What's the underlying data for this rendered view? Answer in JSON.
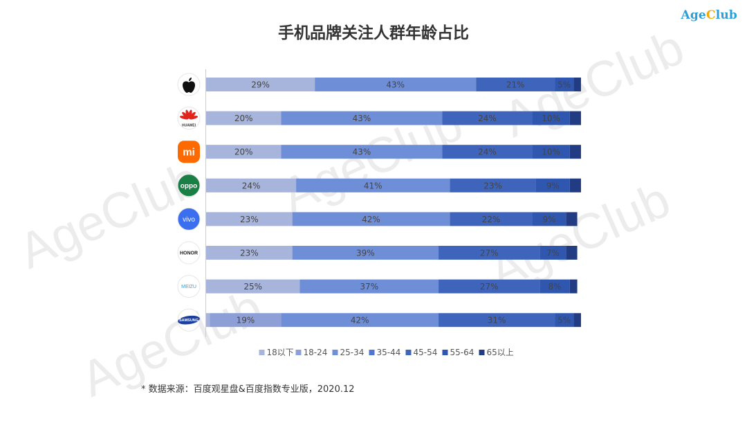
{
  "brand": {
    "name_prefix": "Age",
    "name_highlight": "C",
    "name_suffix": "lub"
  },
  "watermarks": [
    "AgeClub",
    "AgeClub",
    "AgeClub",
    "AgeClub",
    "AgeClub"
  ],
  "footnote": "* 数据来源：百度观星盘&百度指数专业版，2020.12",
  "colors": {
    "segments": [
      "#a7b4dc",
      "#8e9fd7",
      "#6f8ed8",
      "#4f77cc",
      "#3f64bb",
      "#2f57b0",
      "#223c84"
    ],
    "label": "#444444",
    "axis": "#cccccc"
  },
  "chart_data": {
    "type": "bar",
    "orientation": "horizontal",
    "stacked": true,
    "title": "手机品牌关注人群年龄占比",
    "legend_position": "bottom",
    "categories": [
      "18以下",
      "18-24",
      "25-34",
      "35-44",
      "45-54",
      "55-64",
      "65以上"
    ],
    "brands": [
      {
        "logo": "apple-icon",
        "logo_text": "",
        "values": [
          29,
          0,
          43,
          0,
          21,
          5,
          2
        ]
      },
      {
        "logo": "huawei-icon",
        "logo_text": "HUAWEI",
        "values": [
          20,
          0,
          43,
          0,
          24,
          10,
          3
        ]
      },
      {
        "logo": "xiaomi-icon",
        "logo_text": "mi",
        "values": [
          20,
          0,
          43,
          0,
          24,
          10,
          3
        ]
      },
      {
        "logo": "oppo-icon",
        "logo_text": "oppo",
        "values": [
          24,
          0,
          41,
          0,
          23,
          9,
          3
        ]
      },
      {
        "logo": "vivo-icon",
        "logo_text": "vivo",
        "values": [
          23,
          0,
          42,
          0,
          22,
          9,
          3
        ]
      },
      {
        "logo": "honor-icon",
        "logo_text": "HONOR",
        "values": [
          23,
          0,
          39,
          0,
          27,
          7,
          3
        ]
      },
      {
        "logo": "meizu-icon",
        "logo_text": "MEIZU",
        "values": [
          25,
          0,
          37,
          0,
          27,
          8,
          2
        ]
      },
      {
        "logo": "samsung-icon",
        "logo_text": "SAMSUNG",
        "values": [
          1,
          19,
          42,
          0,
          31,
          5,
          2
        ]
      }
    ],
    "value_labels": [
      [
        "29%",
        "",
        "43%",
        "",
        "21%",
        "5%",
        ""
      ],
      [
        "20%",
        "",
        "43%",
        "",
        "24%",
        "10%",
        ""
      ],
      [
        "20%",
        "",
        "43%",
        "",
        "24%",
        "10%",
        ""
      ],
      [
        "24%",
        "",
        "41%",
        "",
        "23%",
        "9%",
        ""
      ],
      [
        "23%",
        "",
        "42%",
        "",
        "22%",
        "9%",
        ""
      ],
      [
        "23%",
        "",
        "39%",
        "",
        "27%",
        "7%",
        ""
      ],
      [
        "25%",
        "",
        "37%",
        "",
        "27%",
        "8%",
        ""
      ],
      [
        "",
        "19%",
        "42%",
        "",
        "31%",
        "5%",
        ""
      ]
    ],
    "xlim": [
      0,
      100
    ]
  }
}
